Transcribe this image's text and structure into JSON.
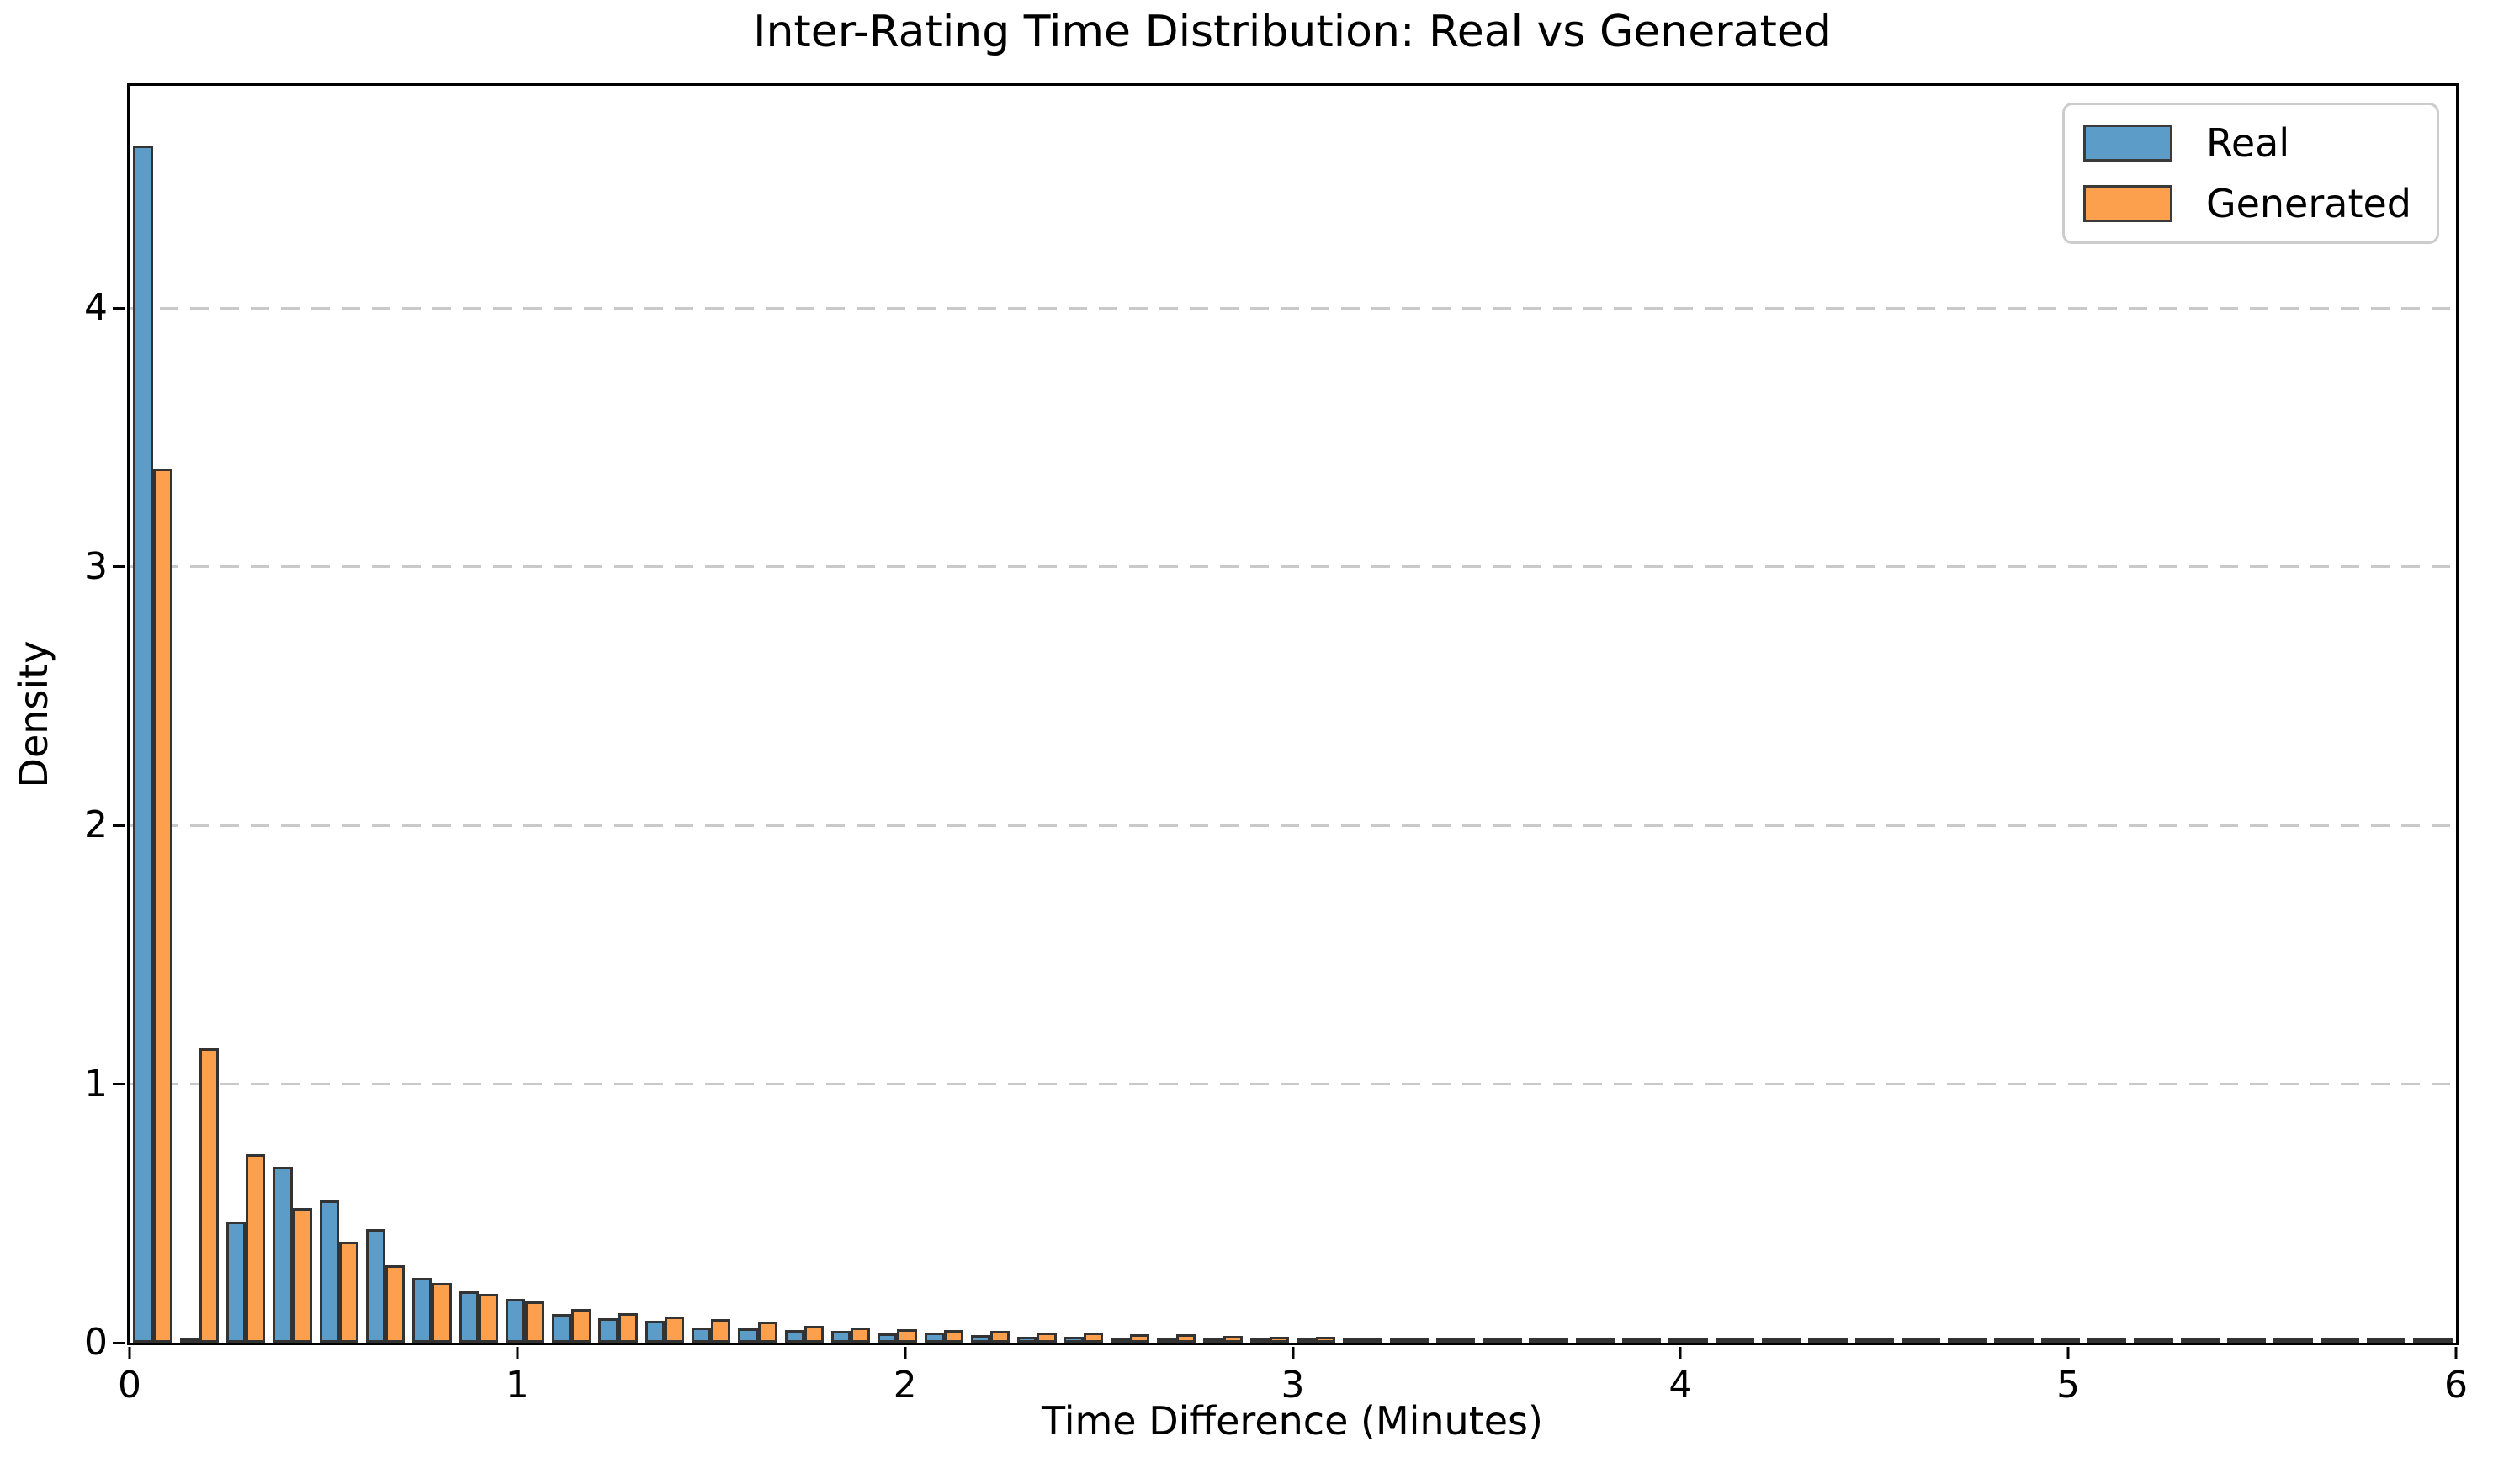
{
  "title": "Inter-Rating Time Distribution: Real vs Generated",
  "xlabel": "Time Difference (Minutes)",
  "ylabel": "Density",
  "legend": {
    "position": "upper right",
    "items": [
      {
        "label": "Real",
        "color": "#5B9CC8"
      },
      {
        "label": "Generated",
        "color": "#FCA04E"
      }
    ]
  },
  "colors": {
    "real_fill": "#5B9CC8",
    "generated_fill": "#FCA04E",
    "bar_edge": "#333333",
    "grid": "#c9c9c9",
    "axis": "#000000",
    "background": "#ffffff"
  },
  "axes": {
    "x_ticks": [
      0,
      1,
      2,
      3,
      4,
      5,
      6
    ],
    "y_ticks": [
      0,
      1,
      2,
      3,
      4
    ],
    "x_range": [
      0,
      6
    ],
    "y_range": [
      0,
      4.86
    ],
    "grid": "dashed horizontal at y=1,2,3,4"
  },
  "chart_data": {
    "type": "bar",
    "subtype": "grouped-histogram",
    "title": "Inter-Rating Time Distribution: Real vs Generated",
    "xlabel": "Time Difference (Minutes)",
    "ylabel": "Density",
    "xlim": [
      0,
      6
    ],
    "ylim": [
      0,
      4.86
    ],
    "n_bins": 50,
    "bin_width": 0.12,
    "bin_start": 0,
    "legend_position": "upper right",
    "grid": true,
    "series": [
      {
        "name": "Real",
        "values": [
          4.63,
          0.02,
          0.47,
          0.68,
          0.55,
          0.44,
          0.25,
          0.2,
          0.17,
          0.11,
          0.095,
          0.085,
          0.06,
          0.055,
          0.05,
          0.045,
          0.036,
          0.04,
          0.029,
          0.024,
          0.022,
          0.015,
          0.013,
          0.011,
          0.01,
          0.01,
          0.009,
          0.008,
          0.007,
          0.006,
          0.006,
          0.005,
          0.005,
          0.004,
          0.004,
          0.003,
          0.003,
          0.003,
          0.002,
          0.002,
          0.002,
          0.002,
          0.002,
          0.001,
          0.001,
          0.001,
          0.001,
          0.001,
          0.001,
          0.001
        ]
      },
      {
        "name": "Generated",
        "values": [
          3.38,
          1.14,
          0.73,
          0.52,
          0.39,
          0.3,
          0.23,
          0.19,
          0.16,
          0.13,
          0.115,
          0.1,
          0.09,
          0.08,
          0.065,
          0.06,
          0.052,
          0.05,
          0.047,
          0.04,
          0.038,
          0.032,
          0.031,
          0.026,
          0.024,
          0.022,
          0.02,
          0.018,
          0.017,
          0.016,
          0.015,
          0.014,
          0.013,
          0.012,
          0.011,
          0.011,
          0.01,
          0.009,
          0.009,
          0.008,
          0.008,
          0.007,
          0.007,
          0.006,
          0.006,
          0.005,
          0.005,
          0.004,
          0.004,
          0.004
        ]
      }
    ]
  }
}
